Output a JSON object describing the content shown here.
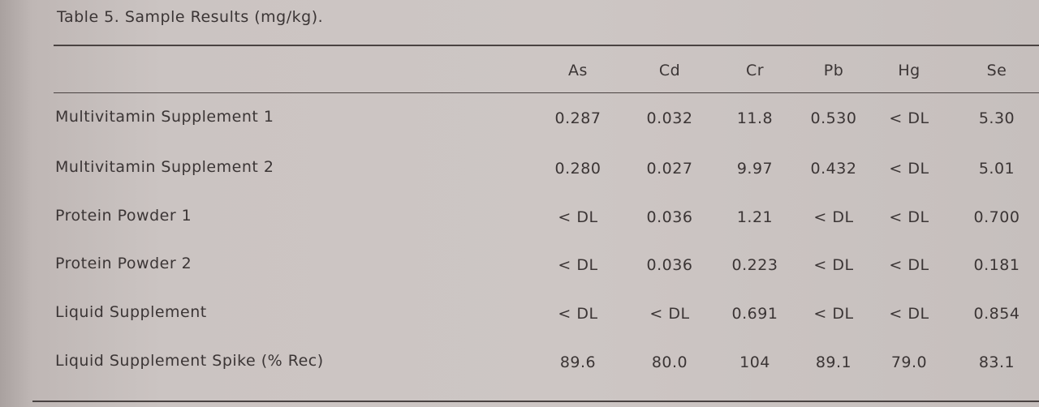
{
  "table": {
    "title": "Table 5.  Sample Results (mg/kg).",
    "columns": [
      "As",
      "Cd",
      "Cr",
      "Pb",
      "Hg",
      "Se"
    ],
    "rows": [
      {
        "label": "Multivitamin Supplement 1",
        "cells": [
          "0.287",
          "0.032",
          "11.8",
          "0.530",
          "< DL",
          "5.30"
        ]
      },
      {
        "label": "Multivitamin Supplement 2",
        "cells": [
          "0.280",
          "0.027",
          "9.97",
          "0.432",
          "< DL",
          "5.01"
        ]
      },
      {
        "label": "Protein Powder 1",
        "cells": [
          "< DL",
          "0.036",
          "1.21",
          "< DL",
          "< DL",
          "0.700"
        ]
      },
      {
        "label": "Protein Powder 2",
        "cells": [
          "< DL",
          "0.036",
          "0.223",
          "< DL",
          "< DL",
          "0.181"
        ]
      },
      {
        "label": "Liquid Supplement",
        "cells": [
          "< DL",
          "< DL",
          "0.691",
          "< DL",
          "< DL",
          "0.854"
        ]
      },
      {
        "label": "Liquid Supplement Spike (% Rec)",
        "cells": [
          "89.6",
          "80.0",
          "104",
          "89.1",
          "79.0",
          "83.1"
        ]
      }
    ]
  }
}
